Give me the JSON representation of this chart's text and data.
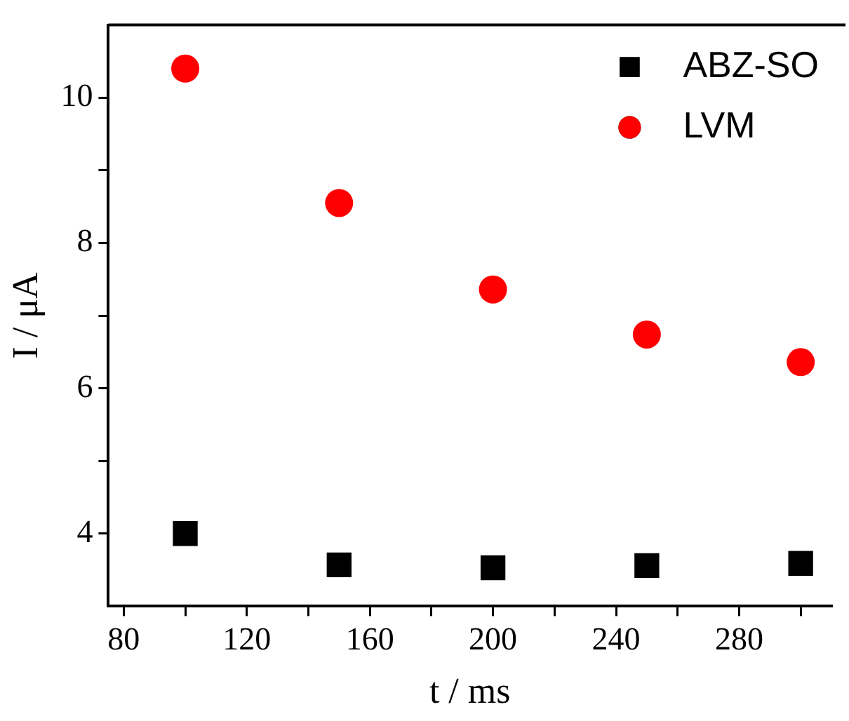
{
  "chart_data": {
    "type": "scatter",
    "xlabel": "t / ms",
    "ylabel": "I / μA",
    "xlim": [
      75,
      310
    ],
    "ylim": [
      3,
      11
    ],
    "xticks": [
      80,
      {
        "value": 100,
        "label": null
      },
      120,
      {
        "value": 140,
        "label": null
      },
      160,
      {
        "value": 180,
        "label": null
      },
      200,
      {
        "value": 220,
        "label": null
      },
      240,
      {
        "value": 260,
        "label": null
      },
      280,
      {
        "value": 300,
        "label": null
      }
    ],
    "yticks": [
      4,
      {
        "value": 5,
        "label": null
      },
      6,
      {
        "value": 7,
        "label": null
      },
      8,
      {
        "value": 9,
        "label": null
      },
      10
    ],
    "grid": false,
    "legend": "top right",
    "series": [
      {
        "name": "ABZ-SO",
        "color": "#000000",
        "marker": "square",
        "x": [
          100,
          150,
          200,
          250,
          300
        ],
        "values": [
          4.0,
          3.57,
          3.53,
          3.56,
          3.59
        ]
      },
      {
        "name": "LVM",
        "color": "#ff0000",
        "marker": "circle",
        "x": [
          100,
          150,
          200,
          250,
          300
        ],
        "values": [
          10.4,
          8.55,
          7.36,
          6.74,
          6.36
        ]
      }
    ]
  }
}
